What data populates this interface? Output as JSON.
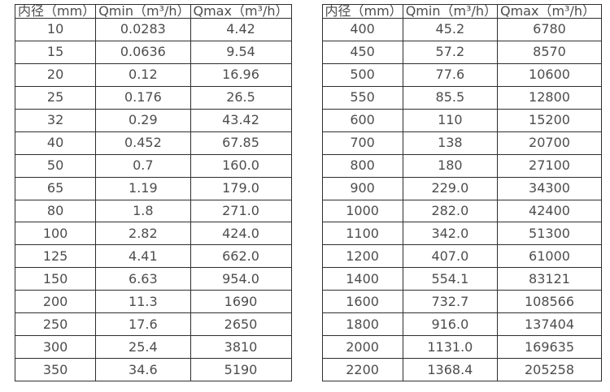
{
  "page": {
    "background_color": "#ffffff",
    "border_color": "#2e2e2e",
    "text_color": "#4d4d4d"
  },
  "tables": [
    {
      "headers": [
        "内径（mm）",
        "Qmin（m³/h）",
        "Qmax（m³/h）"
      ],
      "rows": [
        [
          "10",
          "0.0283",
          "4.42"
        ],
        [
          "15",
          "0.0636",
          "9.54"
        ],
        [
          "20",
          "0.12",
          "16.96"
        ],
        [
          "25",
          "0.176",
          "26.5"
        ],
        [
          "32",
          "0.29",
          "43.42"
        ],
        [
          "40",
          "0.452",
          "67.85"
        ],
        [
          "50",
          "0.7",
          "160.0"
        ],
        [
          "65",
          "1.19",
          "179.0"
        ],
        [
          "80",
          "1.8",
          "271.0"
        ],
        [
          "100",
          "2.82",
          "424.0"
        ],
        [
          "125",
          "4.41",
          "662.0"
        ],
        [
          "150",
          "6.63",
          "954.0"
        ],
        [
          "200",
          "11.3",
          "1690"
        ],
        [
          "250",
          "17.6",
          "2650"
        ],
        [
          "300",
          "25.4",
          "3810"
        ],
        [
          "350",
          "34.6",
          "5190"
        ]
      ]
    },
    {
      "headers": [
        "内径（mm）",
        "Qmin（m³/h）",
        "Qmax（m³/h）"
      ],
      "rows": [
        [
          "400",
          "45.2",
          "6780"
        ],
        [
          "450",
          "57.2",
          "8570"
        ],
        [
          "500",
          "77.6",
          "10600"
        ],
        [
          "550",
          "85.5",
          "12800"
        ],
        [
          "600",
          "110",
          "15200"
        ],
        [
          "700",
          "138",
          "20700"
        ],
        [
          "800",
          "180",
          "27100"
        ],
        [
          "900",
          "229.0",
          "34300"
        ],
        [
          "1000",
          "282.0",
          "42400"
        ],
        [
          "1100",
          "342.0",
          "51300"
        ],
        [
          "1200",
          "407.0",
          "61000"
        ],
        [
          "1400",
          "554.1",
          "83121"
        ],
        [
          "1600",
          "732.7",
          "108566"
        ],
        [
          "1800",
          "916.0",
          "137404"
        ],
        [
          "2000",
          "1131.0",
          "169635"
        ],
        [
          "2200",
          "1368.4",
          "205258"
        ]
      ]
    }
  ]
}
